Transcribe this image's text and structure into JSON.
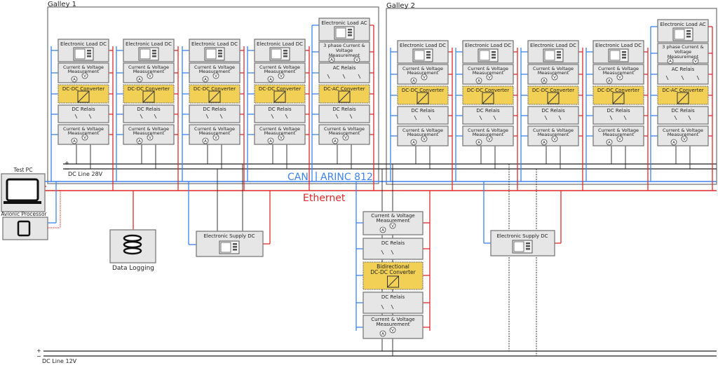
{
  "galleys": [
    {
      "label": "Galley 1"
    },
    {
      "label": "Galley 2"
    }
  ],
  "blocks": {
    "load_dc": "Electronic Load DC",
    "load_ac": "Electronic Load AC",
    "cv_1": "Current & Voltage",
    "cv_2": "Measurement",
    "cv3_1": "3 phase Current &",
    "cv3_2": "Voltage",
    "cv3_3": "Measurement",
    "ac_relais": "AC Relais",
    "dc_relais": "DC Relais",
    "dcdc": "DC-DC Converter",
    "dcac": "DC-AC Converter",
    "bidir_1": "Bidirectional",
    "bidir_2": "DC-DC Converter",
    "supply_dc": "Electronic Supply DC",
    "ammeter": "A",
    "voltmeter": "V"
  },
  "buses": {
    "dc28_label": "DC Line 28V",
    "dc12_label": "DC Line 12V",
    "plus": "+",
    "minus": "−",
    "can_label": "CAN",
    "arinc_label": "ARINC 812",
    "ethernet_label": "Ethernet"
  },
  "devices": {
    "test_pc": "Test PC",
    "avionic_processor": "Avionic Processor",
    "data_logging": "Data Logging"
  },
  "colors": {
    "can": "#3c82f0",
    "ethernet": "#e02828",
    "box_fill": "#e6e6e6",
    "box_stroke": "#7a7a7a",
    "converter_fill": "#f2cf55"
  }
}
